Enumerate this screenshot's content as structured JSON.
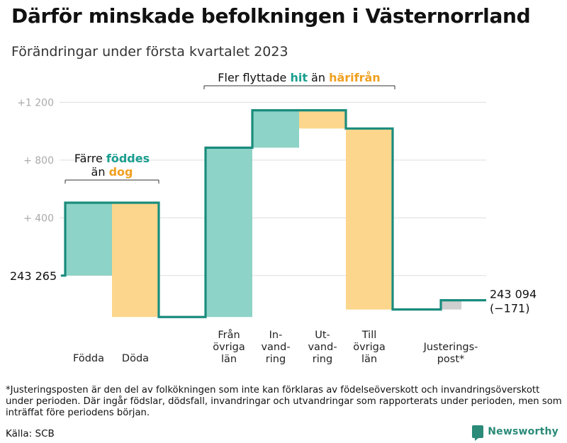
{
  "title": "Därför minskade befolkningen i Västernorrland",
  "subtitle": "Förändringar under första kvartalet 2023",
  "colors": {
    "inflow": "#8dd3c7",
    "outflow": "#fbd68c",
    "adjust": "#cfcfcf",
    "line": "#1a8c7d",
    "hit": "#1a9e8f",
    "harifran": "#f0a020",
    "grid": "#dddddd",
    "tick": "#aaaaaa"
  },
  "chart_data": {
    "type": "waterfall",
    "y_ticks": [
      {
        "value": 400,
        "label": "+ 400"
      },
      {
        "value": 800,
        "label": "+ 800"
      },
      {
        "value": 1200,
        "label": "+1 200"
      }
    ],
    "ylim": [
      -330,
      1320
    ],
    "start": {
      "value": 0,
      "label": "243 265"
    },
    "end": {
      "value": -171,
      "label_line1": "243 094",
      "label_line2": "(−171)"
    },
    "steps": [
      {
        "name": "Födda",
        "change": 505,
        "kind": "inflow",
        "label_lines": [
          "Födda"
        ]
      },
      {
        "name": "Döda",
        "change": -792,
        "kind": "outflow",
        "label_lines": [
          "Döda"
        ]
      },
      {
        "name": "Från övriga län",
        "change": 1173,
        "kind": "inflow",
        "label_lines": [
          "Från",
          "övriga",
          "län"
        ]
      },
      {
        "name": "Invandring",
        "change": 259,
        "kind": "inflow",
        "label_lines": [
          "In-",
          "vand-",
          "ring"
        ]
      },
      {
        "name": "Utvandring",
        "change": -126,
        "kind": "outflow",
        "label_lines": [
          "Ut-",
          "vand-",
          "ring"
        ]
      },
      {
        "name": "Till övriga län",
        "change": -1254,
        "kind": "outflow",
        "label_lines": [
          "Till",
          "övriga",
          "län"
        ]
      },
      {
        "name": "Justeringspost*",
        "change": 64,
        "kind": "adjust",
        "label_lines": [
          "Justerings-",
          "post*"
        ]
      }
    ],
    "annotations": {
      "births": {
        "line1_prefix": "Färre ",
        "line1_em": "föddes",
        "line2_prefix": "än ",
        "line2_em": "dog"
      },
      "migration": {
        "prefix": "Fler flyttade ",
        "em1": "hit",
        "middle": " än ",
        "em2": "härifrån"
      }
    }
  },
  "footnote": "*Justeringsposten är den del av folkökningen som inte kan förklaras av födelseöverskott och invandringsöverskott under perioden. Där ingår födslar, dödsfall, invandringar och utvandringar som rapporterats under perioden, men som inträffat före periodens början.",
  "source": "Källa: SCB",
  "brand": "Newsworthy"
}
